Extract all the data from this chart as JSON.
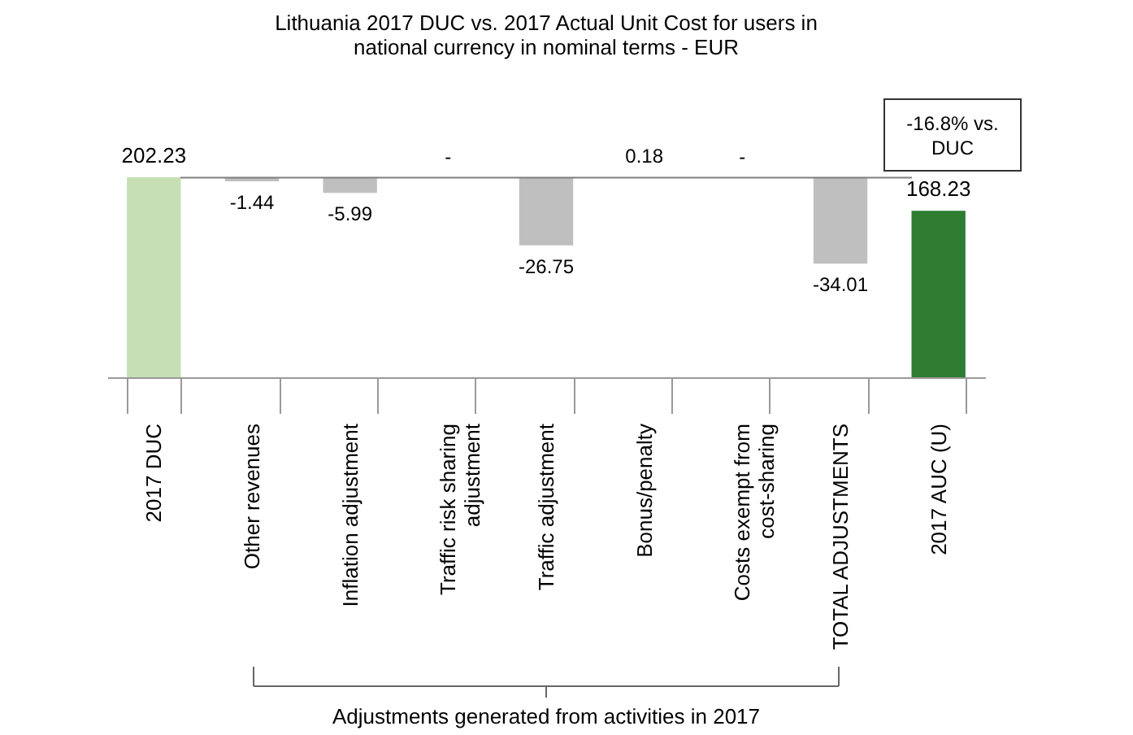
{
  "chart_data": {
    "type": "bar",
    "title": "Lithuania 2017 DUC vs. 2017 Actual Unit Cost for users in national currency in nominal terms - EUR",
    "categories": [
      "2017 DUC",
      "Other revenues",
      "Inflation adjustment",
      "Traffic risk sharing adjustment",
      "Traffic adjustment",
      "Bonus/penalty",
      "Costs exempt from cost-sharing",
      "TOTAL ADJUSTMENTS",
      "2017 AUC (U)"
    ],
    "series": [
      {
        "colors": [
          "#c6e0b4",
          null,
          null,
          null,
          null,
          null,
          null,
          null,
          "#2e7d32"
        ],
        "values": [
          202.23,
          null,
          null,
          null,
          null,
          null,
          null,
          null,
          168.23
        ],
        "value_labels": [
          "202.23",
          null,
          null,
          null,
          null,
          null,
          null,
          null,
          "168.23"
        ]
      },
      {
        "axis": "y2",
        "colors": [
          null,
          "#bfbfbf",
          "#bfbfbf",
          "#bfbfbf",
          "#bfbfbf",
          "#bfbfbf",
          "#bfbfbf",
          "#bfbfbf",
          null
        ],
        "values": [
          null,
          -1.44,
          -5.99,
          null,
          -26.75,
          0.18,
          null,
          -34.01,
          null
        ],
        "value_labels": [
          null,
          "-1.44",
          "-5.99",
          "-",
          "-26.75",
          "0.18",
          "-",
          "-34.01",
          null
        ]
      }
    ],
    "ylim": [
      0,
      202.23
    ],
    "y2lim": [
      -79,
      0.18
    ],
    "ref_lines": [
      {
        "axis": "y2",
        "value": 0,
        "color": "#7f7f7f"
      }
    ],
    "annotations": [
      "-16.8% vs. DUC",
      "Adjustments generated from activities in 2017"
    ],
    "tick_labels": "x",
    "grid": false
  }
}
